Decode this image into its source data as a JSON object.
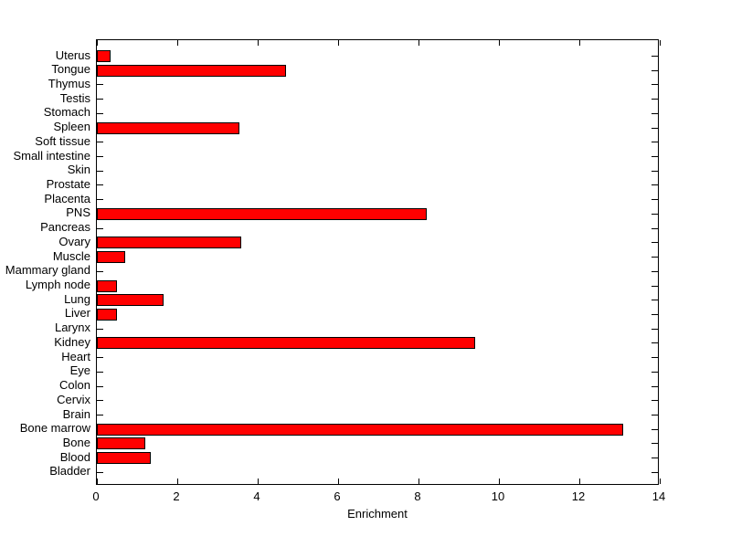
{
  "chart_data": {
    "type": "bar",
    "orientation": "horizontal",
    "title": "",
    "xlabel": "Enrichment",
    "ylabel": "",
    "xlim": [
      0,
      14
    ],
    "x_ticks": [
      0,
      2,
      4,
      6,
      8,
      10,
      12,
      14
    ],
    "grid": false,
    "legend": null,
    "background_color": "#ffffff",
    "bar_color": "#ff0000",
    "bar_edge_color": "#000000",
    "axis_color": "#000000",
    "categories": [
      "Uterus",
      "Tongue",
      "Thymus",
      "Testis",
      "Stomach",
      "Spleen",
      "Soft tissue",
      "Small intestine",
      "Skin",
      "Prostate",
      "Placenta",
      "PNS",
      "Pancreas",
      "Ovary",
      "Muscle",
      "Mammary gland",
      "Lymph node",
      "Lung",
      "Liver",
      "Larynx",
      "Kidney",
      "Heart",
      "Eye",
      "Colon",
      "Cervix",
      "Brain",
      "Bone marrow",
      "Bone",
      "Blood",
      "Bladder"
    ],
    "values": [
      0.35,
      4.7,
      0,
      0,
      0,
      3.55,
      0,
      0,
      0,
      0,
      0,
      8.2,
      0,
      3.6,
      0.7,
      0,
      0.5,
      1.65,
      0.5,
      0,
      9.4,
      0,
      0,
      0,
      0,
      0,
      13.1,
      1.2,
      1.35,
      0
    ]
  }
}
